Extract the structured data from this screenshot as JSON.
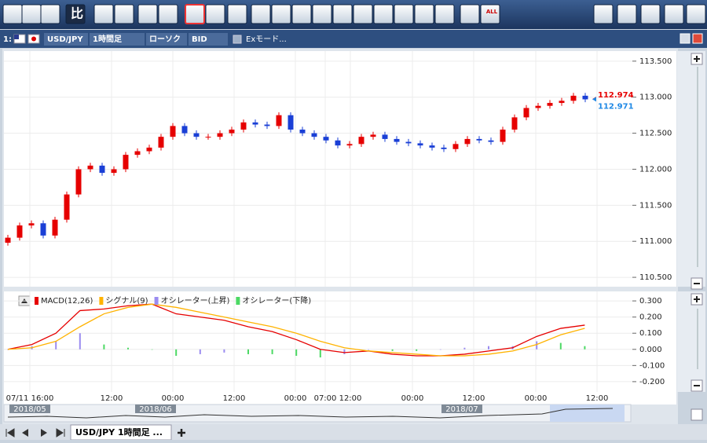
{
  "toolbar": {
    "compare_label": "比",
    "all_label": "ALL"
  },
  "tab": {
    "index": "1:",
    "pair": "USD/JPY",
    "period": "1時間足",
    "chart_type": "ローソク",
    "price_type": "BID",
    "ex_mode": "Exモード..."
  },
  "chart_data": [
    {
      "type": "candlestick",
      "up_color": "#e60000",
      "down_color": "#1a3fd6",
      "grid": true,
      "open": [
        110.98,
        111.05,
        111.22,
        111.25,
        111.08,
        111.3,
        111.65,
        112.0,
        112.05,
        111.95,
        112.0,
        112.2,
        112.25,
        112.3,
        112.45,
        112.6,
        112.5,
        112.45,
        112.45,
        112.5,
        112.55,
        112.65,
        112.62,
        112.6,
        112.75,
        112.55,
        112.5,
        112.45,
        112.4,
        112.33,
        112.35,
        112.45,
        112.48,
        112.42,
        112.38,
        112.36,
        112.33,
        112.3,
        112.28,
        112.35,
        112.42,
        112.4,
        112.38,
        112.55,
        112.72,
        112.85,
        112.88,
        112.92,
        112.95,
        113.02
      ],
      "high": [
        111.09,
        111.26,
        111.29,
        111.29,
        111.34,
        111.69,
        112.04,
        112.09,
        112.09,
        112.04,
        112.24,
        112.29,
        112.34,
        112.49,
        112.64,
        112.64,
        112.54,
        112.49,
        112.54,
        112.59,
        112.69,
        112.69,
        112.66,
        112.79,
        112.79,
        112.59,
        112.54,
        112.49,
        112.44,
        112.39,
        112.49,
        112.52,
        112.52,
        112.46,
        112.42,
        112.4,
        112.37,
        112.34,
        112.39,
        112.46,
        112.46,
        112.44,
        112.59,
        112.76,
        112.89,
        112.92,
        112.96,
        112.99,
        113.06,
        113.06
      ],
      "low": [
        110.94,
        111.01,
        111.18,
        111.04,
        111.04,
        111.26,
        111.61,
        111.96,
        111.91,
        111.91,
        111.96,
        112.16,
        112.21,
        112.26,
        112.41,
        112.46,
        112.41,
        112.41,
        112.41,
        112.46,
        112.51,
        112.58,
        112.56,
        112.56,
        112.51,
        112.46,
        112.41,
        112.36,
        112.29,
        112.29,
        112.31,
        112.41,
        112.38,
        112.34,
        112.32,
        112.29,
        112.26,
        112.24,
        112.24,
        112.31,
        112.36,
        112.34,
        112.34,
        112.51,
        112.68,
        112.81,
        112.84,
        112.88,
        112.91,
        112.93
      ],
      "close": [
        111.05,
        111.22,
        111.25,
        111.08,
        111.3,
        111.65,
        112.0,
        112.05,
        111.95,
        112.0,
        112.2,
        112.25,
        112.3,
        112.45,
        112.6,
        112.5,
        112.45,
        112.45,
        112.5,
        112.55,
        112.65,
        112.62,
        112.6,
        112.75,
        112.55,
        112.5,
        112.45,
        112.4,
        112.33,
        112.35,
        112.45,
        112.48,
        112.42,
        112.38,
        112.36,
        112.33,
        112.3,
        112.28,
        112.35,
        112.42,
        112.4,
        112.38,
        112.55,
        112.72,
        112.85,
        112.88,
        112.92,
        112.95,
        113.02,
        112.97
      ],
      "ylim": [
        110.37,
        113.64
      ],
      "yticks": [
        {
          "value": 113.5,
          "label": "113.500"
        },
        {
          "value": 113.0,
          "label": "113.000"
        },
        {
          "value": 112.5,
          "label": "112.500"
        },
        {
          "value": 112.0,
          "label": "112.000"
        },
        {
          "value": 111.5,
          "label": "111.500"
        },
        {
          "value": 111.0,
          "label": "111.000"
        },
        {
          "value": 110.5,
          "label": "110.500"
        }
      ],
      "price_markers": [
        {
          "value": 112.974,
          "label": "112.974",
          "color": "#e60000"
        },
        {
          "value": 112.971,
          "label": "112.971",
          "color": "#1e88e5"
        }
      ]
    },
    {
      "type": "macd",
      "grid": true,
      "series": [
        {
          "name": "MACD(12,26)",
          "color": "#e60000",
          "kind": "line",
          "values": [
            0.0,
            0.03,
            0.1,
            0.24,
            0.25,
            0.27,
            0.28,
            0.22,
            0.2,
            0.18,
            0.14,
            0.11,
            0.06,
            0.0,
            -0.02,
            -0.01,
            -0.03,
            -0.04,
            -0.04,
            -0.03,
            -0.01,
            0.01,
            0.08,
            0.13,
            0.15
          ]
        },
        {
          "name": "シグナル(9)",
          "color": "#ffb300",
          "kind": "line",
          "values": [
            0.0,
            0.01,
            0.05,
            0.14,
            0.22,
            0.26,
            0.28,
            0.26,
            0.23,
            0.2,
            0.17,
            0.14,
            0.1,
            0.05,
            0.01,
            -0.01,
            -0.02,
            -0.03,
            -0.04,
            -0.04,
            -0.03,
            -0.01,
            0.03,
            0.09,
            0.13
          ]
        },
        {
          "name": "オシレーター(上昇)",
          "color": "#9b8cf0",
          "kind": "bar",
          "values": [
            0,
            0.02,
            0.05,
            0.1,
            null,
            null,
            null,
            null,
            -0.03,
            -0.02,
            null,
            null,
            null,
            null,
            -0.03,
            0,
            null,
            null,
            0,
            0.01,
            0.02,
            0.02,
            0.05,
            null,
            null
          ]
        },
        {
          "name": "オシレーター(下降)",
          "color": "#4cd964",
          "kind": "bar",
          "values": [
            null,
            null,
            null,
            null,
            0.03,
            0.01,
            0,
            -0.04,
            null,
            null,
            -0.03,
            -0.03,
            -0.04,
            -0.05,
            null,
            null,
            -0.01,
            -0.01,
            null,
            null,
            null,
            null,
            null,
            0.04,
            0.02
          ]
        }
      ],
      "ylim": [
        -0.254,
        0.354
      ],
      "yticks": [
        {
          "value": 0.3,
          "label": "0.300"
        },
        {
          "value": 0.2,
          "label": "0.200"
        },
        {
          "value": 0.1,
          "label": "0.100"
        },
        {
          "value": 0.0,
          "label": "0.000"
        },
        {
          "value": -0.1,
          "label": "-0.100"
        },
        {
          "value": -0.2,
          "label": "-0.200"
        }
      ],
      "x_labels": [
        "07/11 16:00",
        "12:00",
        "00:00",
        "12:00",
        "00:00",
        "07:00",
        "12:00",
        "00:00",
        "12:00",
        "00:00",
        "12:00"
      ]
    }
  ],
  "navigator": {
    "labels": [
      "2018/05",
      "2018/06",
      "2018/07"
    ]
  },
  "bottom_tab": {
    "label": "USD/JPY 1時間足 ..."
  }
}
